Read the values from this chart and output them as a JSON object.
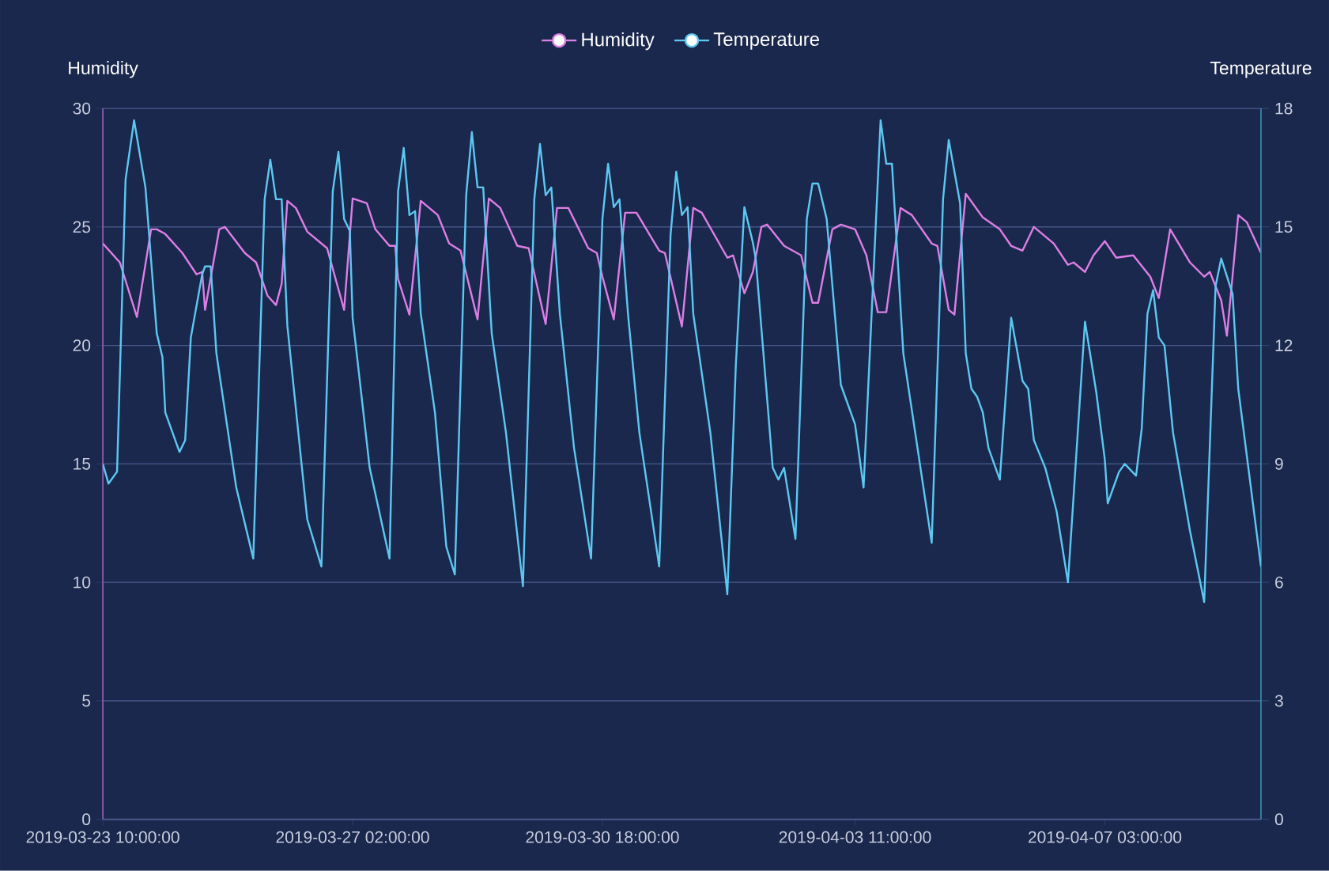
{
  "chart_data": {
    "type": "line",
    "ylabel": "Humidity",
    "y2label": "Temperature",
    "xlim": [
      "2019-03-23T10:00",
      "2019-04-09T10:00"
    ],
    "xticks": [
      {
        "value": "2019-03-23T10:00",
        "label": "2019-03-23 10:00:00"
      },
      {
        "value": "2019-03-27T02:00",
        "label": "2019-03-27 02:00:00"
      },
      {
        "value": "2019-03-30T18:00",
        "label": "2019-03-30 18:00:00"
      },
      {
        "value": "2019-04-03T11:00",
        "label": "2019-04-03 11:00:00"
      },
      {
        "value": "2019-04-07T03:00",
        "label": "2019-04-07 03:00:00"
      }
    ],
    "ylim": [
      0,
      30
    ],
    "yticks": [
      0,
      5,
      10,
      15,
      20,
      25,
      30
    ],
    "y2lim": [
      0,
      18
    ],
    "y2ticks": [
      0,
      3,
      6,
      9,
      12,
      15,
      18
    ],
    "grid": "y",
    "legend": "top",
    "line_style": "solid",
    "series": [
      {
        "name": "Humidity",
        "color": "#dd7ee6",
        "x": [
          "2019-03-23T10:00",
          "2019-03-23T16:00",
          "2019-03-23T22:00",
          "2019-03-24T03:00",
          "2019-03-24T05:00",
          "2019-03-24T08:00",
          "2019-03-24T14:00",
          "2019-03-24T19:00",
          "2019-03-24T21:00",
          "2019-03-24T22:00",
          "2019-03-25T03:00",
          "2019-03-25T05:00",
          "2019-03-25T12:00",
          "2019-03-25T16:00",
          "2019-03-25T20:00",
          "2019-03-25T23:00",
          "2019-03-26T01:00",
          "2019-03-26T03:00",
          "2019-03-26T06:00",
          "2019-03-26T10:00",
          "2019-03-26T17:00",
          "2019-03-26T23:00",
          "2019-03-27T02:00",
          "2019-03-27T07:00",
          "2019-03-27T10:00",
          "2019-03-27T15:00",
          "2019-03-27T17:00",
          "2019-03-27T18:00",
          "2019-03-27T22:00",
          "2019-03-28T02:00",
          "2019-03-28T08:00",
          "2019-03-28T12:00",
          "2019-03-28T16:00",
          "2019-03-28T22:00",
          "2019-03-29T02:00",
          "2019-03-29T06:00",
          "2019-03-29T12:00",
          "2019-03-29T16:00",
          "2019-03-29T22:00",
          "2019-03-30T02:00",
          "2019-03-30T06:00",
          "2019-03-30T13:00",
          "2019-03-30T16:00",
          "2019-03-30T18:00",
          "2019-03-30T22:00",
          "2019-03-31T02:00",
          "2019-03-31T06:00",
          "2019-03-31T14:00",
          "2019-03-31T16:00",
          "2019-03-31T22:00",
          "2019-04-01T02:00",
          "2019-04-01T05:00",
          "2019-04-01T14:00",
          "2019-04-01T16:00",
          "2019-04-01T20:00",
          "2019-04-01T23:00",
          "2019-04-02T02:00",
          "2019-04-02T04:00",
          "2019-04-02T10:00",
          "2019-04-02T16:00",
          "2019-04-02T20:00",
          "2019-04-02T22:00",
          "2019-04-03T03:00",
          "2019-04-03T06:00",
          "2019-04-03T11:00",
          "2019-04-03T15:00",
          "2019-04-03T19:00",
          "2019-04-03T22:00",
          "2019-04-04T03:00",
          "2019-04-04T07:00",
          "2019-04-04T14:00",
          "2019-04-04T16:00",
          "2019-04-04T20:00",
          "2019-04-04T22:00",
          "2019-04-05T02:00",
          "2019-04-05T08:00",
          "2019-04-05T14:00",
          "2019-04-05T18:00",
          "2019-04-05T22:00",
          "2019-04-06T02:00",
          "2019-04-06T09:00",
          "2019-04-06T14:00",
          "2019-04-06T16:00",
          "2019-04-06T20:00",
          "2019-04-06T23:00",
          "2019-04-07T03:00",
          "2019-04-07T07:00",
          "2019-04-07T13:00",
          "2019-04-07T19:00",
          "2019-04-07T22:00",
          "2019-04-08T02:00",
          "2019-04-08T09:00",
          "2019-04-08T14:00",
          "2019-04-08T16:00",
          "2019-04-08T20:00",
          "2019-04-08T22:00",
          "2019-04-09T02:00",
          "2019-04-09T05:00",
          "2019-04-09T10:00"
        ],
        "values": [
          24.3,
          23.5,
          21.2,
          24.9,
          24.9,
          24.7,
          23.9,
          23.0,
          23.1,
          21.5,
          24.9,
          25.0,
          23.9,
          23.5,
          22.1,
          21.7,
          22.6,
          26.1,
          25.8,
          24.8,
          24.1,
          21.5,
          26.2,
          26.0,
          24.9,
          24.2,
          24.2,
          22.8,
          21.3,
          26.1,
          25.5,
          24.3,
          24.0,
          21.1,
          26.2,
          25.8,
          24.2,
          24.1,
          20.9,
          25.8,
          25.8,
          24.1,
          23.9,
          22.9,
          21.1,
          25.6,
          25.6,
          24.0,
          23.9,
          20.8,
          25.8,
          25.6,
          23.7,
          23.8,
          22.2,
          23.1,
          25.0,
          25.1,
          24.2,
          23.8,
          21.8,
          21.8,
          24.9,
          25.1,
          24.9,
          23.8,
          21.4,
          21.4,
          25.8,
          25.5,
          24.3,
          24.2,
          21.5,
          21.3,
          26.4,
          25.4,
          24.9,
          24.2,
          24.0,
          25.0,
          24.3,
          23.4,
          23.5,
          23.1,
          23.8,
          24.4,
          23.7,
          23.8,
          22.9,
          22.0,
          24.9,
          23.5,
          22.9,
          23.1,
          21.9,
          20.4,
          25.5,
          25.2,
          23.9
        ]
      },
      {
        "name": "Temperature",
        "color": "#5cc8f2",
        "axis": "y2",
        "x": [
          "2019-03-23T10:00",
          "2019-03-23T12:00",
          "2019-03-23T15:00",
          "2019-03-23T18:00",
          "2019-03-23T21:00",
          "2019-03-24T01:00",
          "2019-03-24T05:00",
          "2019-03-24T07:00",
          "2019-03-24T08:00",
          "2019-03-24T13:00",
          "2019-03-24T15:00",
          "2019-03-24T17:00",
          "2019-03-24T21:00",
          "2019-03-24T22:00",
          "2019-03-25T00:00",
          "2019-03-25T02:00",
          "2019-03-25T09:00",
          "2019-03-25T15:00",
          "2019-03-25T19:00",
          "2019-03-25T21:00",
          "2019-03-25T23:00",
          "2019-03-26T01:00",
          "2019-03-26T03:00",
          "2019-03-26T10:00",
          "2019-03-26T15:00",
          "2019-03-26T19:00",
          "2019-03-26T21:00",
          "2019-03-26T23:00",
          "2019-03-27T01:00",
          "2019-03-27T02:00",
          "2019-03-27T08:00",
          "2019-03-27T15:00",
          "2019-03-27T18:00",
          "2019-03-27T20:00",
          "2019-03-27T22:00",
          "2019-03-28T00:00",
          "2019-03-28T02:00",
          "2019-03-28T07:00",
          "2019-03-28T11:00",
          "2019-03-28T14:00",
          "2019-03-28T18:00",
          "2019-03-28T20:00",
          "2019-03-28T22:00",
          "2019-03-29T00:00",
          "2019-03-29T03:00",
          "2019-03-29T08:00",
          "2019-03-29T14:00",
          "2019-03-29T18:00",
          "2019-03-29T20:00",
          "2019-03-29T22:00",
          "2019-03-30T00:00",
          "2019-03-30T03:00",
          "2019-03-30T08:00",
          "2019-03-30T14:00",
          "2019-03-30T18:00",
          "2019-03-30T20:00",
          "2019-03-30T22:00",
          "2019-03-31T00:00",
          "2019-03-31T03:00",
          "2019-03-31T07:00",
          "2019-03-31T14:00",
          "2019-03-31T18:00",
          "2019-03-31T20:00",
          "2019-03-31T22:00",
          "2019-04-01T00:00",
          "2019-04-01T02:00",
          "2019-04-01T08:00",
          "2019-04-01T14:00",
          "2019-04-01T17:00",
          "2019-04-01T20:00",
          "2019-04-01T23:00",
          "2019-04-02T00:00",
          "2019-04-02T06:00",
          "2019-04-02T08:00",
          "2019-04-02T10:00",
          "2019-04-02T14:00",
          "2019-04-02T18:00",
          "2019-04-02T20:00",
          "2019-04-02T22:00",
          "2019-04-03T01:00",
          "2019-04-03T06:00",
          "2019-04-03T11:00",
          "2019-04-03T14:00",
          "2019-04-03T20:00",
          "2019-04-03T22:00",
          "2019-04-04T00:00",
          "2019-04-04T04:00",
          "2019-04-04T14:00",
          "2019-04-04T18:00",
          "2019-04-04T20:00",
          "2019-04-05T00:00",
          "2019-04-05T02:00",
          "2019-04-05T04:00",
          "2019-04-05T06:00",
          "2019-04-05T08:00",
          "2019-04-05T10:00",
          "2019-04-05T14:00",
          "2019-04-05T18:00",
          "2019-04-05T22:00",
          "2019-04-06T00:00",
          "2019-04-06T02:00",
          "2019-04-06T06:00",
          "2019-04-06T10:00",
          "2019-04-06T14:00",
          "2019-04-06T20:00",
          "2019-04-07T00:00",
          "2019-04-07T03:00",
          "2019-04-07T04:00",
          "2019-04-07T08:00",
          "2019-04-07T10:00",
          "2019-04-07T14:00",
          "2019-04-07T16:00",
          "2019-04-07T18:00",
          "2019-04-07T20:00",
          "2019-04-07T22:00",
          "2019-04-08T00:00",
          "2019-04-08T03:00",
          "2019-04-08T09:00",
          "2019-04-08T14:00",
          "2019-04-08T18:00",
          "2019-04-08T20:00",
          "2019-04-09T00:00",
          "2019-04-09T02:00",
          "2019-04-09T10:00"
        ],
        "values": [
          9.0,
          8.5,
          8.8,
          16.2,
          17.7,
          16.0,
          12.3,
          11.7,
          10.3,
          9.3,
          9.6,
          12.2,
          13.8,
          14.0,
          14.0,
          11.8,
          8.4,
          6.6,
          15.7,
          16.7,
          15.7,
          15.7,
          12.5,
          7.6,
          6.4,
          15.9,
          16.9,
          15.2,
          14.9,
          12.7,
          8.9,
          6.6,
          15.9,
          17.0,
          15.3,
          15.4,
          12.8,
          10.3,
          6.9,
          6.2,
          15.8,
          17.4,
          16.0,
          16.0,
          12.3,
          9.8,
          5.9,
          15.7,
          17.1,
          15.8,
          16.0,
          12.8,
          9.4,
          6.6,
          15.2,
          16.6,
          15.5,
          15.7,
          12.8,
          9.8,
          6.4,
          14.8,
          16.4,
          15.3,
          15.5,
          12.8,
          9.8,
          5.7,
          11.5,
          15.5,
          14.6,
          14.2,
          8.9,
          8.6,
          8.9,
          7.1,
          15.2,
          16.1,
          16.1,
          15.2,
          11.0,
          10.0,
          8.4,
          17.7,
          16.6,
          16.6,
          11.8,
          7.0,
          15.7,
          17.2,
          15.6,
          11.8,
          10.9,
          10.7,
          10.3,
          9.4,
          8.6,
          12.7,
          11.1,
          10.9,
          9.6,
          8.9,
          7.8,
          6.0,
          12.6,
          10.8,
          9.1,
          8.0,
          8.8,
          9.0,
          8.7,
          9.9,
          12.8,
          13.4,
          12.2,
          12.0,
          9.8,
          7.3,
          5.5,
          13.5,
          14.2,
          13.3,
          10.9,
          6.4
        ]
      }
    ]
  }
}
